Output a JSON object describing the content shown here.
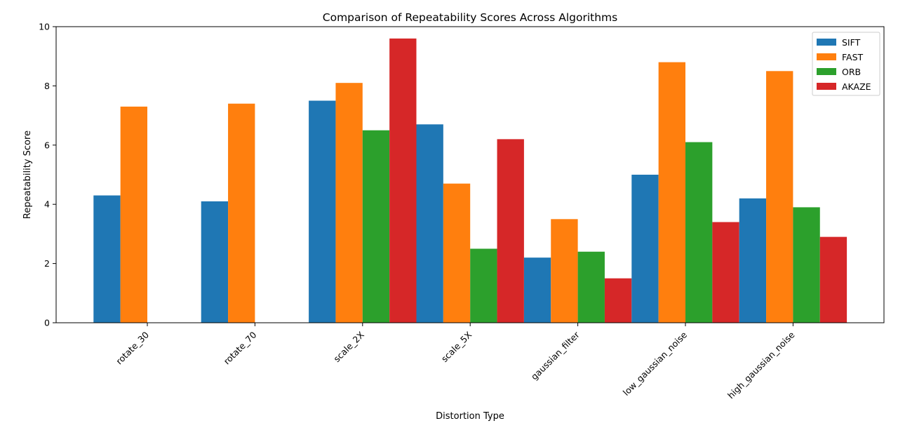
{
  "chart_data": {
    "type": "bar",
    "title": "Comparison of Repeatability Scores Across Algorithms",
    "xlabel": "Distortion Type",
    "ylabel": "Repeatability Score",
    "ylim": [
      0,
      10
    ],
    "yticks": [
      0,
      2,
      4,
      6,
      8,
      10
    ],
    "grid": false,
    "legend_position": "top-right",
    "categories": [
      "rotate_30",
      "rotate_70",
      "scale_2X",
      "scale_5X",
      "gaussian_filter",
      "low_gaussian_noise",
      "high_gaussian_noise"
    ],
    "series": [
      {
        "name": "SIFT",
        "color": "#1f77b4",
        "values": [
          4.3,
          4.1,
          7.5,
          6.7,
          2.2,
          5.0,
          4.2
        ]
      },
      {
        "name": "FAST",
        "color": "#ff7f0e",
        "values": [
          7.3,
          7.4,
          8.1,
          4.7,
          3.5,
          8.8,
          8.5
        ]
      },
      {
        "name": "ORB",
        "color": "#2ca02c",
        "values": [
          0,
          0,
          6.5,
          2.5,
          2.4,
          6.1,
          3.9
        ]
      },
      {
        "name": "AKAZE",
        "color": "#d62728",
        "values": [
          0,
          0,
          9.6,
          6.2,
          1.5,
          3.4,
          2.9
        ]
      }
    ]
  }
}
